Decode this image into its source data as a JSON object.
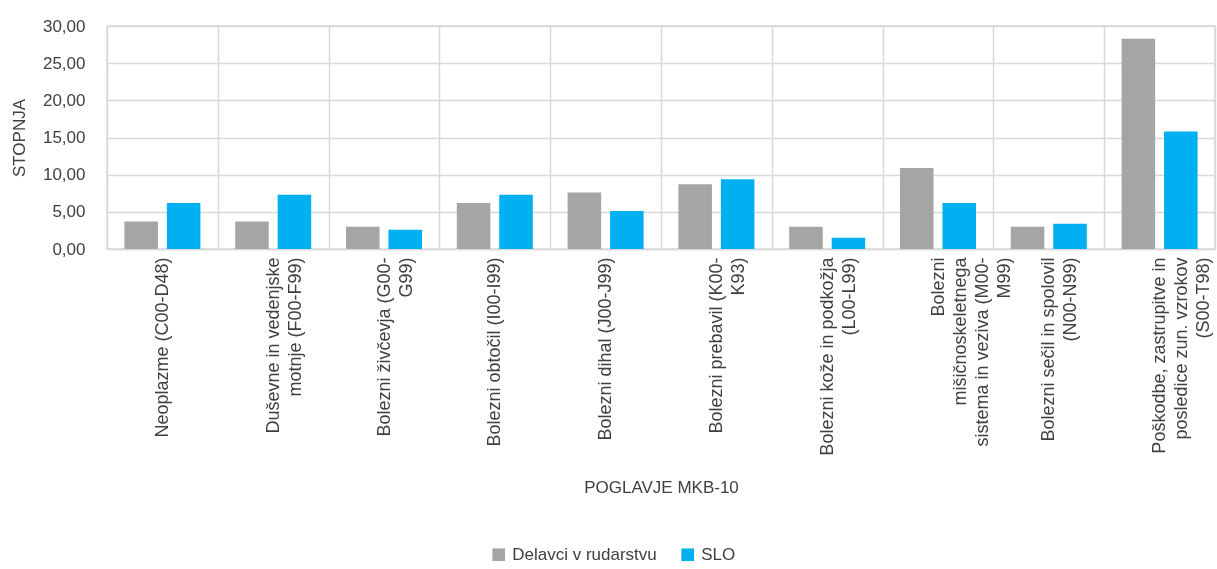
{
  "chart_data": {
    "type": "bar",
    "ylabel": "STOPNJA",
    "xlabel": "POGLAVJE MKB-10",
    "categories": [
      "Neoplazme (C00-D48)",
      "Duševne in vedenjske motnje (F00-F99)",
      "Bolezni živčevja (G00-G99)",
      "Bolezni obtočil (I00-I99)",
      "Bolezni dihal (J00-J99)",
      "Bolezni prebavil (K00-K93)",
      "Bolezni kože in podkožja (L00-L99)",
      "Bolezni mišičnoskeletnega sistema in veziva (M00-M99)",
      "Bolezni sečil in spolovil (N00-N99)",
      "Poškodbe, zastrupitve in posledice zun. vzrokov (S00-T98)"
    ],
    "series": [
      {
        "name": "Delavci v rudarstvu",
        "color": "#a5a5a5",
        "values": [
          3.7,
          3.7,
          3.0,
          6.2,
          7.6,
          8.7,
          3.0,
          10.9,
          3.0,
          28.3
        ]
      },
      {
        "name": "SLO",
        "color": "#00b0f0",
        "values": [
          6.2,
          7.3,
          2.6,
          7.3,
          5.1,
          9.4,
          1.5,
          6.2,
          3.4,
          15.8
        ]
      }
    ],
    "ylim": [
      0,
      30
    ],
    "yticks": [
      {
        "value": 0,
        "label": "0,00"
      },
      {
        "value": 5,
        "label": "5,00"
      },
      {
        "value": 10,
        "label": "10,00"
      },
      {
        "value": 15,
        "label": "15,00"
      },
      {
        "value": 20,
        "label": "20,00"
      },
      {
        "value": 25,
        "label": "25,00"
      },
      {
        "value": 30,
        "label": "30,00"
      }
    ],
    "grid": true,
    "legend": "bottom"
  }
}
